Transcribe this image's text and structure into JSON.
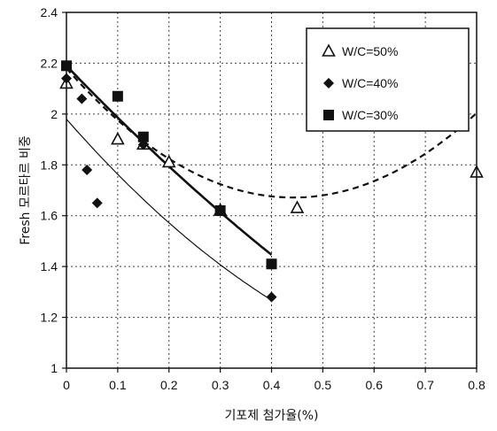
{
  "chart_data": {
    "type": "scatter",
    "xlabel": "기포제 첨가율(%)",
    "ylabel": "Fresh 모르타르 비중",
    "xlim": [
      0,
      0.8
    ],
    "ylim": [
      1,
      2.4
    ],
    "x_ticks": [
      0,
      0.1,
      0.2,
      0.3,
      0.4,
      0.5,
      0.6,
      0.7,
      0.8
    ],
    "x_tick_labels": [
      "0",
      "0.1",
      "0.2",
      "0.3",
      "0.4",
      "0.5",
      "0.6",
      "0.7",
      "0.8"
    ],
    "y_ticks": [
      1,
      1.2,
      1.4,
      1.6,
      1.8,
      2,
      2.2,
      2.4
    ],
    "y_tick_labels": [
      "1",
      "1.2",
      "1.4",
      "1.6",
      "1.8",
      "2",
      "2.2",
      "2.4"
    ],
    "grid": true,
    "legend_position": "top-right",
    "series": [
      {
        "name": "W/C=50%",
        "marker": "triangle-open",
        "points": [
          [
            0,
            2.12
          ],
          [
            0.1,
            1.9
          ],
          [
            0.15,
            1.88
          ],
          [
            0.2,
            1.81
          ],
          [
            0.3,
            1.62
          ],
          [
            0.45,
            1.63
          ],
          [
            0.8,
            1.77
          ]
        ],
        "trendline": {
          "style": "dashed",
          "coeffs": [
            2.18,
            -2.3,
            2.6
          ],
          "x_range": [
            0,
            0.8
          ]
        }
      },
      {
        "name": "W/C=40%",
        "marker": "diamond-filled",
        "points": [
          [
            0,
            2.14
          ],
          [
            0.03,
            2.06
          ],
          [
            0.04,
            1.78
          ],
          [
            0.06,
            1.65
          ],
          [
            0.15,
            1.88
          ],
          [
            0.4,
            1.28
          ]
        ],
        "trendline": {
          "style": "solid-thin",
          "coeffs": [
            1.98,
            -2.3,
            1.3
          ],
          "x_range": [
            0,
            0.4
          ]
        }
      },
      {
        "name": "W/C=30%",
        "marker": "square-filled",
        "points": [
          [
            0,
            2.19
          ],
          [
            0.1,
            2.07
          ],
          [
            0.15,
            1.91
          ],
          [
            0.3,
            1.62
          ],
          [
            0.4,
            1.41
          ]
        ],
        "trendline": {
          "style": "solid-thick",
          "coeffs": [
            2.19,
            -2.1,
            0.6
          ],
          "x_range": [
            0,
            0.4
          ]
        }
      }
    ]
  },
  "colors": {
    "ink": "#111111",
    "grid": "#444444",
    "background": "#ffffff"
  }
}
